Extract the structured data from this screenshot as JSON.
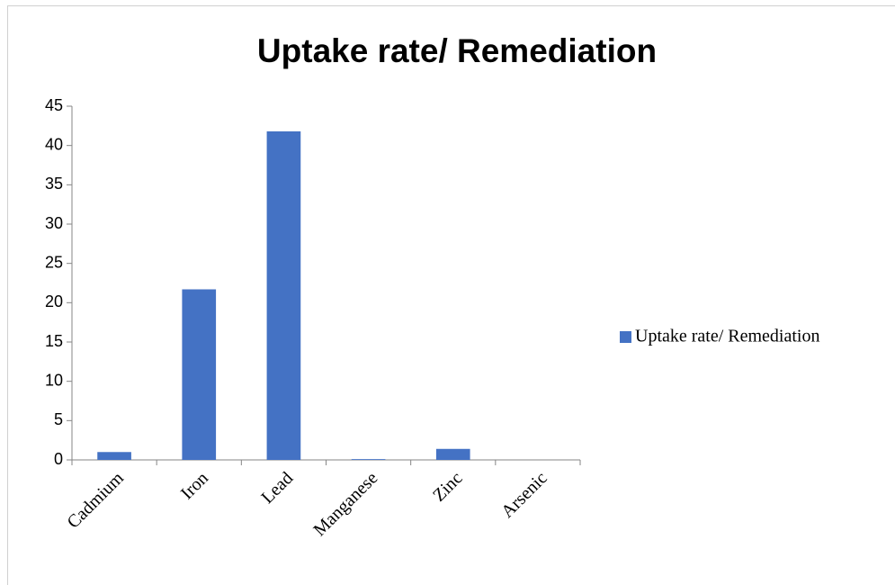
{
  "chart_data": {
    "type": "bar",
    "title": "Uptake rate/ Remediation",
    "categories": [
      "Cadmium",
      "Iron",
      "Lead",
      "Manganese",
      "Zinc",
      "Arsenic"
    ],
    "series": [
      {
        "name": "Uptake rate/ Remediation",
        "color": "#4472c4",
        "values": [
          1,
          21.7,
          41.8,
          0.1,
          1.4,
          0
        ]
      }
    ],
    "ylim": [
      0,
      45
    ],
    "yticks": [
      0,
      5,
      10,
      15,
      20,
      25,
      30,
      35,
      40,
      45
    ],
    "legend": "right"
  }
}
